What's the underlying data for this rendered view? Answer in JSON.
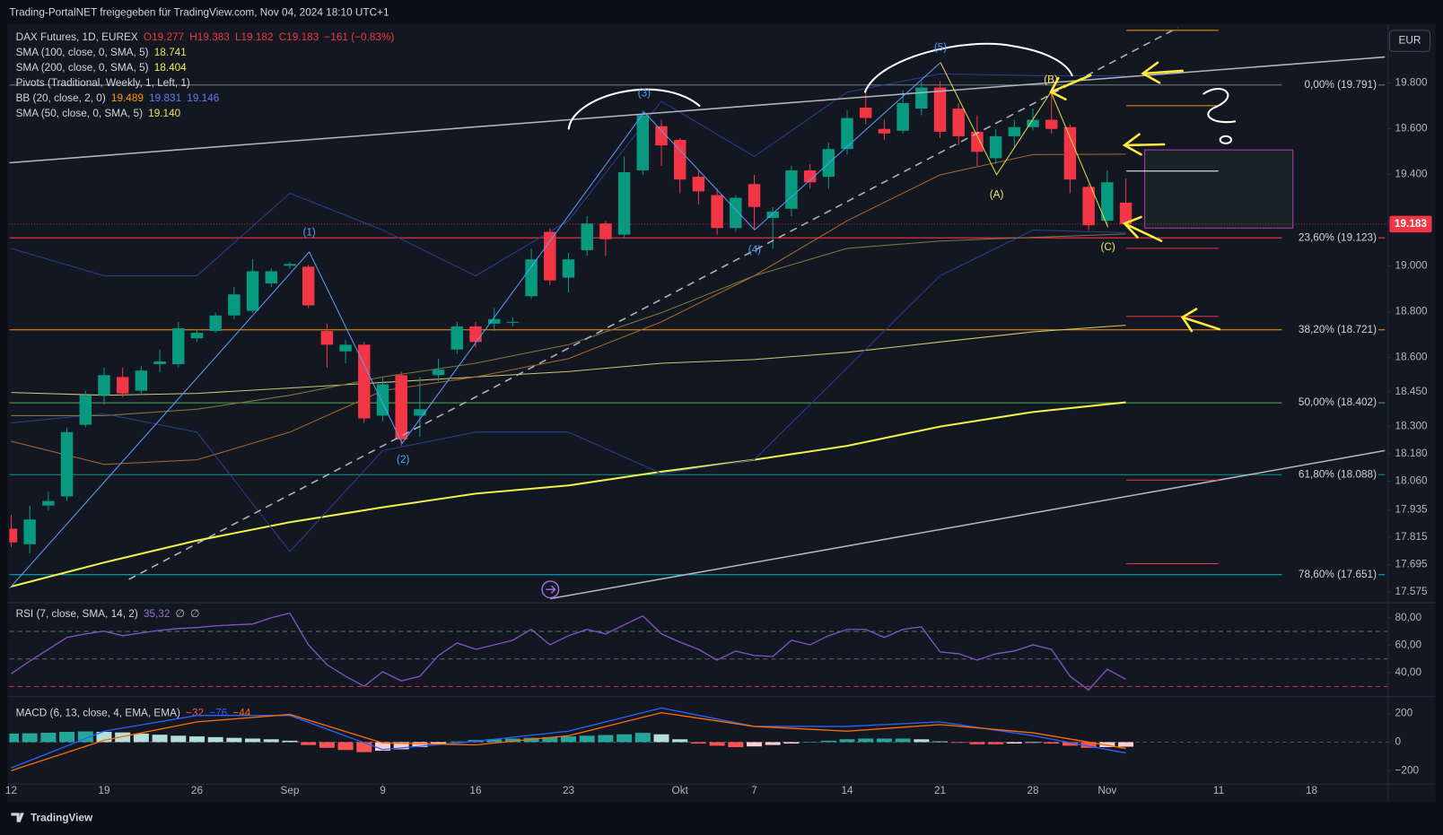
{
  "chart_data": [
    {
      "type": "candlestick",
      "title": "Trading-PortalNET freigegeben für TradingView.com, Nov 04, 2024 18:10 UTC+1",
      "symbol": "DAX Futures, 1D, EUREX",
      "ohlc_labels": [
        "O19.277",
        "H19.383",
        "L19.182",
        "C19.183",
        "−161 (−0,83%)"
      ],
      "currency": "EUR",
      "last_price": {
        "value": 19183,
        "label": "19.183"
      },
      "up_color": "#089981",
      "down_color": "#f23645",
      "open": [
        17852,
        17784,
        17953,
        17993,
        18306,
        18435,
        18515,
        18455,
        18571,
        18571,
        18684,
        18716,
        18784,
        18804,
        18924,
        19001,
        18997,
        18716,
        18627,
        18656,
        18346,
        18523,
        18346,
        18523,
        18635,
        18736,
        18748,
        18752,
        18868,
        19149,
        18949,
        19069,
        19186,
        19137,
        19418,
        19611,
        19551,
        19390,
        19310,
        19166,
        19358,
        19210,
        19250,
        19418,
        19390,
        19511,
        19692,
        19599,
        19591,
        19688,
        19780,
        19688,
        19587,
        19471,
        19567,
        19607,
        19639,
        19607,
        19346,
        19198,
        19277
      ],
      "high": [
        17912,
        17952,
        18013,
        18294,
        18455,
        18555,
        18555,
        18563,
        18635,
        18756,
        18724,
        18796,
        18908,
        19029,
        18989,
        19017,
        19005,
        18748,
        18676,
        18668,
        18515,
        18539,
        18515,
        18595,
        18756,
        18756,
        18816,
        18776,
        19077,
        19165,
        19057,
        19218,
        19198,
        19479,
        19680,
        19639,
        19559,
        19418,
        19338,
        19310,
        19398,
        19258,
        19438,
        19446,
        19539,
        19680,
        19760,
        19639,
        19768,
        19808,
        19808,
        19712,
        19659,
        19599,
        19639,
        19688,
        19760,
        19619,
        19358,
        19418,
        19383
      ],
      "low": [
        17772,
        17743,
        17933,
        17973,
        18294,
        18394,
        18427,
        18435,
        18535,
        18555,
        18668,
        18708,
        18768,
        18796,
        18908,
        18989,
        18816,
        18555,
        18575,
        18314,
        18322,
        18214,
        18254,
        18495,
        18615,
        18644,
        18716,
        18736,
        18856,
        18916,
        18884,
        19045,
        19045,
        19125,
        19398,
        19438,
        19318,
        19270,
        19137,
        19149,
        19157,
        19077,
        19218,
        19338,
        19338,
        19487,
        19619,
        19551,
        19579,
        19659,
        19559,
        19527,
        19438,
        19446,
        19519,
        19591,
        19579,
        19318,
        19157,
        19178,
        19182
      ],
      "close": [
        17792,
        17892,
        17973,
        18274,
        18435,
        18523,
        18443,
        18543,
        18583,
        18728,
        18708,
        18784,
        18876,
        18977,
        18977,
        19009,
        18828,
        18656,
        18656,
        18334,
        18483,
        18242,
        18374,
        18547,
        18736,
        18668,
        18768,
        18756,
        19029,
        18937,
        19029,
        19186,
        19117,
        19410,
        19659,
        19527,
        19378,
        19326,
        19166,
        19298,
        19258,
        19238,
        19418,
        19366,
        19511,
        19647,
        19647,
        19579,
        19712,
        19780,
        19587,
        19567,
        19499,
        19567,
        19607,
        19639,
        19599,
        19378,
        19178,
        19366,
        19183
      ],
      "xlim": [
        -0.1,
        73.7
      ],
      "xticks": [
        {
          "value": 0,
          "label": "12"
        },
        {
          "value": 5,
          "label": "19"
        },
        {
          "value": 10,
          "label": "26"
        },
        {
          "value": 15,
          "label": "Sep"
        },
        {
          "value": 20,
          "label": "9"
        },
        {
          "value": 25,
          "label": "16"
        },
        {
          "value": 30,
          "label": "23"
        },
        {
          "value": 36,
          "label": "Okt"
        },
        {
          "value": 40,
          "label": "7"
        },
        {
          "value": 45,
          "label": "14"
        },
        {
          "value": 50,
          "label": "21"
        },
        {
          "value": 55,
          "label": "28"
        },
        {
          "value": 59,
          "label": "Nov"
        },
        {
          "value": 65,
          "label": "11"
        },
        {
          "value": 70,
          "label": "18"
        }
      ],
      "ylim": [
        17530,
        20050
      ],
      "yticks": [
        {
          "value": 19800,
          "label": "19.800"
        },
        {
          "value": 19600,
          "label": "19.600"
        },
        {
          "value": 19400,
          "label": "19.400"
        },
        {
          "value": 19000,
          "label": "19.000"
        },
        {
          "value": 18800,
          "label": "18.800"
        },
        {
          "value": 18600,
          "label": "18.600"
        },
        {
          "value": 18450,
          "label": "18.450"
        },
        {
          "value": 18300,
          "label": "18.300"
        },
        {
          "value": 18180,
          "label": "18.180"
        },
        {
          "value": 18060,
          "label": "18.060"
        },
        {
          "value": 17935,
          "label": "17.935"
        },
        {
          "value": 17815,
          "label": "17.815"
        },
        {
          "value": 17695,
          "label": "17.695"
        },
        {
          "value": 17575,
          "label": "17.575"
        }
      ],
      "indicators": [
        {
          "name": "SMA (100, close, 0, SMA, 5)",
          "legend_values": [
            "18.741"
          ],
          "legend_colors": [
            "#e8e05a"
          ],
          "lines": [
            {
              "color": "#cfc870",
              "width": 1,
              "x": [
                0,
                5,
                10,
                15,
                20,
                25,
                30,
                35,
                40,
                45,
                50,
                55,
                60
              ],
              "values": [
                18447,
                18435,
                18443,
                18467,
                18491,
                18515,
                18539,
                18575,
                18591,
                18623,
                18668,
                18712,
                18741
              ]
            }
          ]
        },
        {
          "name": "SMA (200, close, 0, SMA, 5)",
          "legend_values": [
            "18.404"
          ],
          "legend_colors": [
            "#eef24a"
          ],
          "lines": [
            {
              "color": "#eef24a",
              "width": 2,
              "x": [
                0,
                5,
                10,
                15,
                20,
                25,
                30,
                35,
                40,
                45,
                50,
                55,
                60
              ],
              "values": [
                17599,
                17704,
                17800,
                17880,
                17945,
                18005,
                18041,
                18101,
                18153,
                18214,
                18298,
                18362,
                18404
              ]
            }
          ]
        },
        {
          "name": "Pivots (Traditional, Weekly, 1, Left, 1)"
        },
        {
          "name": "BB (20, close, 2, 0)",
          "legend_values": [
            "19.489",
            "19.831",
            "19.146"
          ],
          "legend_colors": [
            "#ff9800",
            "#5b7cf6",
            "#5b7cf6"
          ],
          "lines": [
            {
              "color": "#a8682a",
              "width": 1,
              "x": [
                0,
                5,
                10,
                15,
                20,
                25,
                30,
                35,
                40,
                45,
                50,
                55,
                60
              ],
              "values": [
                18234,
                18133,
                18153,
                18274,
                18455,
                18515,
                18595,
                18756,
                18957,
                19198,
                19398,
                19487,
                19489
              ]
            },
            {
              "color": "#2b3f8f",
              "width": 1,
              "x": [
                0,
                5,
                10,
                15,
                20,
                25,
                30,
                35,
                40,
                45,
                50,
                55,
                60
              ],
              "values": [
                19077,
                18957,
                18957,
                19318,
                19157,
                18957,
                19198,
                19720,
                19479,
                19760,
                19840,
                19832,
                19831
              ]
            },
            {
              "color": "#2b3f8f",
              "width": 1,
              "x": [
                0,
                5,
                10,
                15,
                20,
                25,
                30,
                35,
                40,
                45,
                50,
                55,
                60
              ],
              "values": [
                18314,
                18354,
                18274,
                17752,
                18193,
                18274,
                18274,
                18093,
                18153,
                18555,
                18957,
                19157,
                19146
              ]
            }
          ]
        },
        {
          "name": "SMA (50, close, 0, SMA, 5)",
          "legend_values": [
            "19.140"
          ],
          "legend_colors": [
            "#e8e05a"
          ],
          "lines": [
            {
              "color": "#7d7840",
              "width": 1,
              "x": [
                0,
                5,
                10,
                15,
                20,
                25,
                30,
                35,
                40,
                45,
                50,
                55,
                60
              ],
              "values": [
                18346,
                18346,
                18374,
                18435,
                18515,
                18575,
                18656,
                18796,
                18957,
                19077,
                19109,
                19125,
                19140
              ]
            }
          ]
        }
      ],
      "fib_levels": [
        {
          "value": 19791,
          "label": "0,00% (19.791)",
          "color": "#787b86"
        },
        {
          "value": 19123,
          "label": "23,60% (19.123)",
          "color": "#f23645"
        },
        {
          "value": 18721,
          "label": "38,20% (18.721)",
          "color": "#ff9800"
        },
        {
          "value": 18402,
          "label": "50,00% (18.402)",
          "color": "#4caf50"
        },
        {
          "value": 18088,
          "label": "61,80% (18.088)",
          "color": "#089981"
        },
        {
          "value": 17651,
          "label": "78,60% (17.651)",
          "color": "#00bcd4"
        }
      ],
      "wave_labels": [
        {
          "text": "(1)",
          "color": "#5b9cf6"
        },
        {
          "text": "(2)",
          "color": "#5b9cf6"
        },
        {
          "text": "(3)",
          "color": "#5b9cf6"
        },
        {
          "text": "(4)",
          "color": "#5b9cf6"
        },
        {
          "text": "(5)",
          "color": "#5b9cf6"
        },
        {
          "text": "(A)",
          "color": "#f5e663"
        },
        {
          "text": "(B)",
          "color": "#f5e663"
        },
        {
          "text": "(C)",
          "color": "#f5e663"
        }
      ]
    },
    {
      "type": "line",
      "title": "RSI (7, close, SMA, 14, 2)",
      "legend_values": [
        "35,32",
        "∅",
        "∅"
      ],
      "legend_colors": [
        "#9575cd",
        "#b2b5be",
        "#b2b5be"
      ],
      "color": "#7e57c2",
      "values": [
        39.3,
        48.5,
        57.0,
        65.6,
        68.2,
        70.2,
        66.9,
        68.9,
        70.8,
        72.1,
        72.8,
        74.1,
        74.8,
        75.4,
        80.0,
        83.3,
        60.3,
        45.9,
        37.4,
        30.2,
        40.7,
        34.1,
        37.4,
        52.5,
        61.6,
        57.0,
        60.3,
        63.6,
        71.5,
        60.3,
        66.9,
        71.5,
        68.2,
        74.8,
        81.3,
        68.2,
        62.3,
        57.0,
        49.2,
        55.7,
        52.5,
        51.8,
        63.6,
        60.3,
        66.9,
        71.5,
        71.5,
        65.6,
        71.5,
        73.4,
        55.1,
        53.8,
        49.2,
        53.8,
        55.7,
        60.3,
        57.0,
        37.4,
        27.5,
        42.6,
        35.32
      ],
      "ylim": [
        23,
        89.8
      ],
      "yticks": [
        {
          "value": 80,
          "label": "80,00"
        },
        {
          "value": 60,
          "label": "60,00"
        },
        {
          "value": 40,
          "label": "40,00"
        }
      ],
      "levels": [
        {
          "value": 70,
          "color": "#4caf50"
        },
        {
          "value": 50,
          "color": "#787b86"
        },
        {
          "value": 30,
          "color": "#f23645"
        }
      ]
    },
    {
      "type": "macd",
      "title": "MACD (6, 13, close, 4, EMA, EMA)",
      "legend_values": [
        "−32",
        "−76",
        "−44"
      ],
      "legend_colors": [
        "#ff5252",
        "#2962ff",
        "#ff6d00"
      ],
      "histogram": [
        60,
        62,
        66,
        72,
        75,
        72,
        68,
        60,
        52,
        45,
        40,
        35,
        30,
        25,
        20,
        10,
        -20,
        -40,
        -55,
        -70,
        -60,
        -50,
        -35,
        -15,
        5,
        15,
        20,
        25,
        30,
        35,
        40,
        45,
        50,
        55,
        65,
        55,
        20,
        -10,
        -25,
        -35,
        -30,
        -20,
        -10,
        0,
        10,
        20,
        25,
        25,
        25,
        20,
        5,
        -5,
        -15,
        -15,
        -10,
        -5,
        -10,
        -25,
        -40,
        -35,
        -32
      ],
      "hist_colors": [
        "#26a69a",
        "#b2dfdb",
        "#ff5252",
        "#ffcdd2"
      ],
      "lines": [
        {
          "color": "#2962ff",
          "x": [
            0,
            5,
            10,
            15,
            20,
            25,
            30,
            35,
            40,
            45,
            50,
            55,
            60
          ],
          "values": [
            -181,
            77,
            187,
            187,
            -52,
            6,
            77,
            239,
            110,
            110,
            142,
            45,
            -76
          ]
        },
        {
          "color": "#ff6d00",
          "x": [
            0,
            5,
            10,
            15,
            20,
            25,
            30,
            35,
            40,
            45,
            50,
            55,
            60
          ],
          "values": [
            -200,
            13,
            142,
            194,
            -6,
            -19,
            45,
            206,
            110,
            77,
            123,
            65,
            -44
          ]
        }
      ],
      "ylim": [
        -290,
        303
      ],
      "yticks": [
        200,
        0,
        {
          "value": -200,
          "label": "−200"
        }
      ],
      "zero_line": true
    }
  ],
  "footer": "TradingView"
}
